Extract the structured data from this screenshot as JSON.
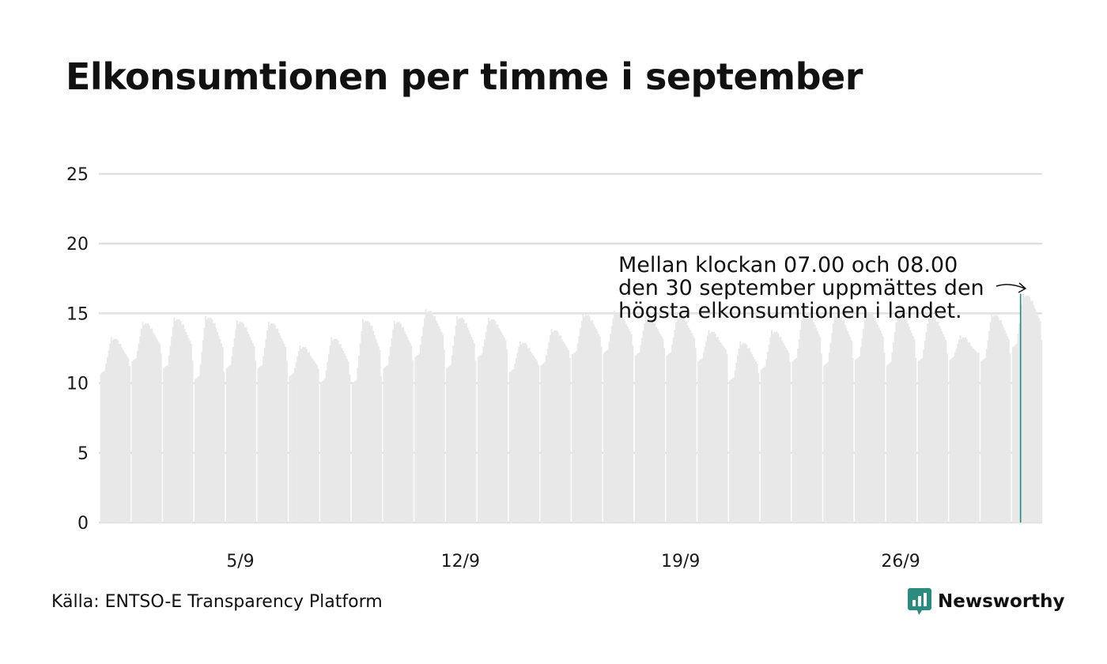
{
  "colors": {
    "bars": "#e8e8e8",
    "highlight": "#2a8c7e",
    "grid": "#e0e0e0",
    "brand": "#2a8c7e"
  },
  "header": {
    "title": "Elkonsumtionen per timme i september"
  },
  "footer": {
    "source": "Källa: ENTSO-E Transparency Platform",
    "brand": "Newsworthy",
    "brand_icon": "bar-chart-speech-bubble-icon"
  },
  "chart_data": {
    "type": "bar",
    "title": "Elkonsumtionen per timme i september",
    "xlabel": "",
    "ylabel": "",
    "ylim": [
      0,
      25
    ],
    "yticks": [
      "0",
      "5",
      "10",
      "15",
      "20",
      "25"
    ],
    "xticks": [
      {
        "label": "5/9",
        "day": 5
      },
      {
        "label": "12/9",
        "day": 12
      },
      {
        "label": "19/9",
        "day": 19
      },
      {
        "label": "26/9",
        "day": 26
      }
    ],
    "grid": true,
    "x_unit": "hour of September (day, hour)",
    "daily_peaks": [
      13.3,
      14.4,
      14.7,
      14.8,
      14.5,
      14.4,
      12.7,
      13.3,
      14.6,
      14.5,
      15.3,
      14.8,
      14.7,
      13.0,
      13.9,
      15.0,
      15.2,
      14.8,
      14.9,
      13.8,
      13.0,
      13.8,
      15.2,
      15.0,
      15.2,
      15.1,
      14.9,
      13.4,
      15.0,
      16.4
    ],
    "daily_night_lows": [
      10.6,
      11.5,
      11.0,
      10.2,
      11.0,
      11.0,
      10.4,
      10.0,
      9.9,
      11.0,
      11.8,
      11.0,
      11.8,
      10.7,
      11.2,
      12.0,
      12.1,
      11.9,
      11.9,
      11.5,
      10.1,
      10.9,
      11.5,
      11.2,
      11.6,
      11.2,
      11.5,
      11.6,
      11.5,
      12.5
    ],
    "peak": {
      "day": 30,
      "hour": 7,
      "value": 16.4
    },
    "annotation": {
      "lines": [
        "Mellan klockan 07.00 och 08.00",
        "den 30 september uppmättes den",
        "högsta elkonsumtionen i landet."
      ]
    }
  }
}
